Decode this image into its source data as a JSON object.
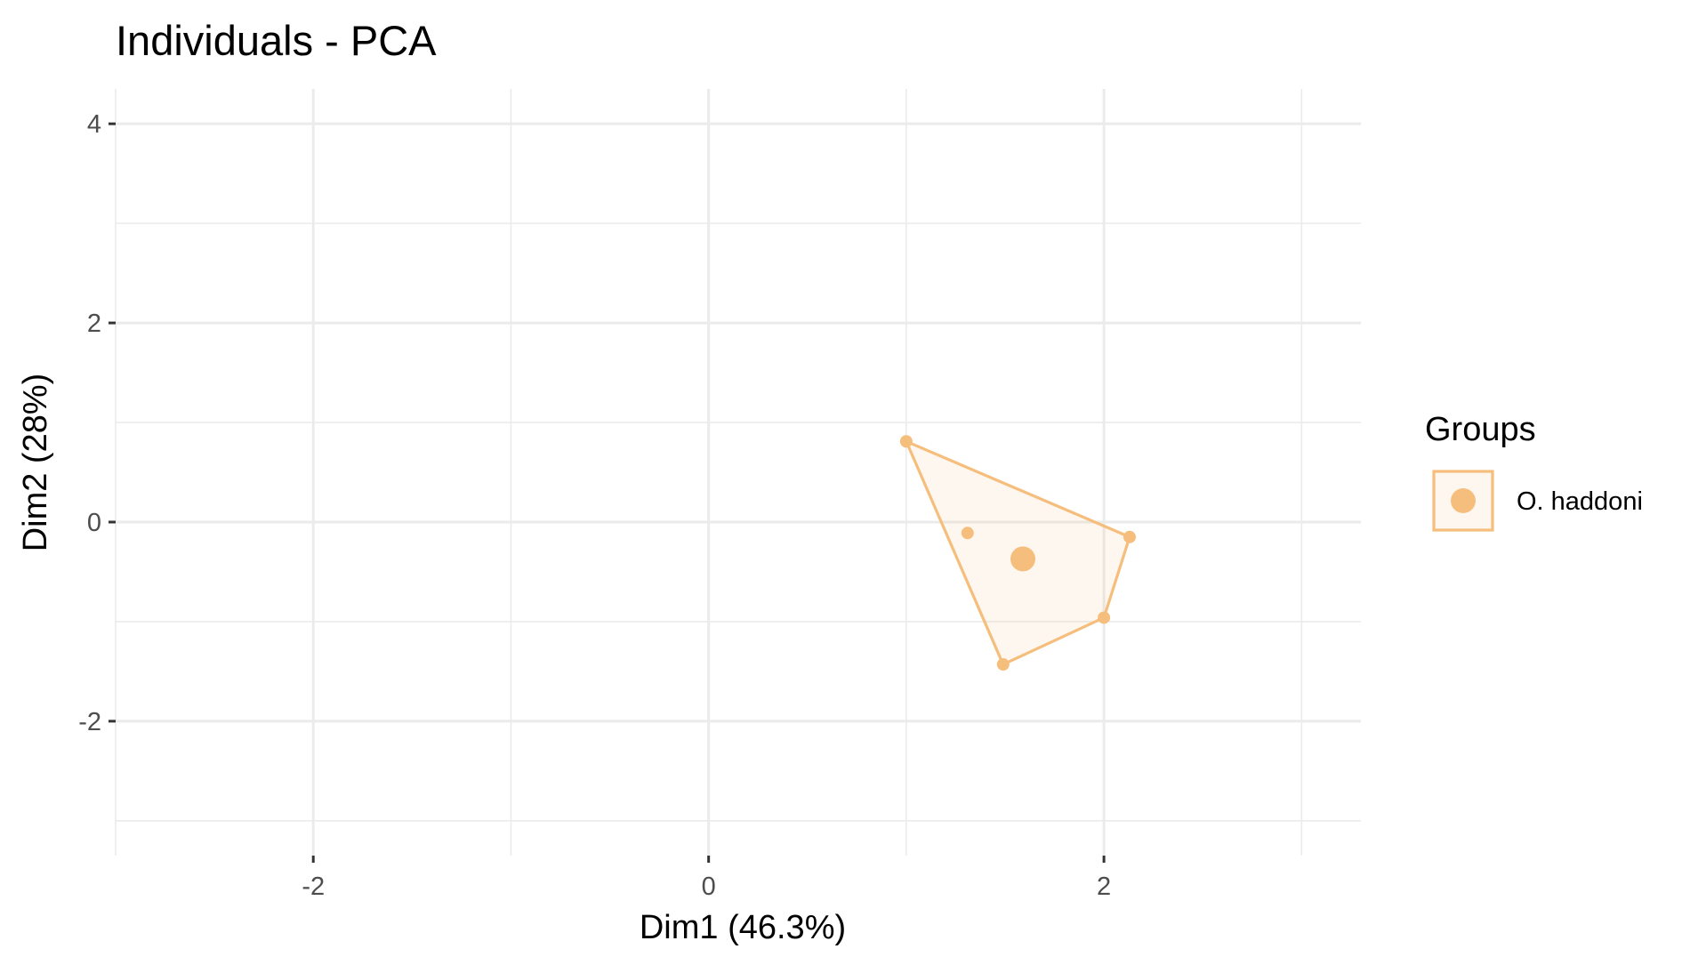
{
  "chart_data": {
    "type": "scatter",
    "title": "Individuals - PCA",
    "xlabel": "Dim1 (46.3%)",
    "ylabel": "Dim2 (28%)",
    "xlim": [
      -3.0,
      3.3
    ],
    "ylim": [
      -3.35,
      4.35
    ],
    "x_ticks": [
      -2,
      0,
      2
    ],
    "x_tick_labels": [
      "-2",
      "0",
      "2"
    ],
    "y_ticks": [
      -2,
      0,
      2,
      4
    ],
    "y_tick_labels": [
      "-2",
      "0",
      "2",
      "4"
    ],
    "grid": true,
    "legend_title": "Groups",
    "legend_position": "right",
    "series": [
      {
        "name": "O. haddoni",
        "color": "#F6BE7C",
        "points": [
          {
            "x": 1.0,
            "y": 0.81
          },
          {
            "x": 1.31,
            "y": -0.11
          },
          {
            "x": 2.13,
            "y": -0.15
          },
          {
            "x": 2.0,
            "y": -0.96
          },
          {
            "x": 1.49,
            "y": -1.43
          }
        ],
        "hull": [
          {
            "x": 1.0,
            "y": 0.81
          },
          {
            "x": 2.13,
            "y": -0.15
          },
          {
            "x": 2.0,
            "y": -0.96
          },
          {
            "x": 1.49,
            "y": -1.43
          }
        ],
        "centroid": {
          "x": 1.59,
          "y": -0.37
        }
      }
    ]
  }
}
